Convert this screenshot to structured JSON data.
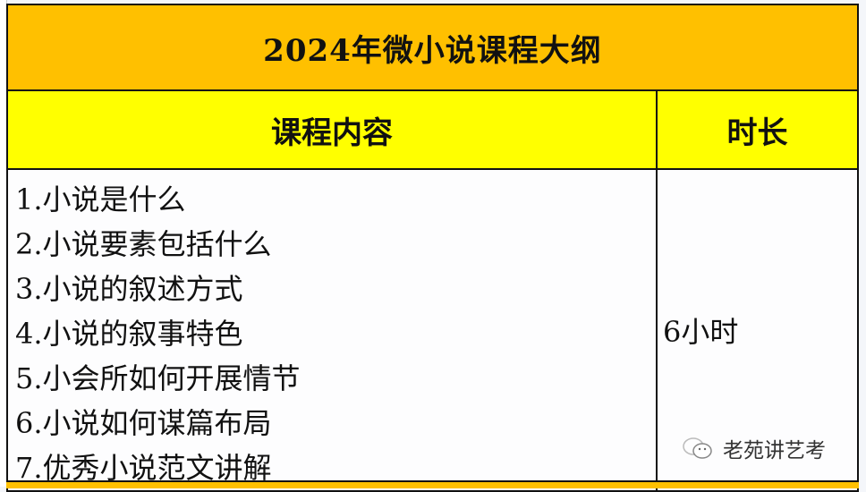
{
  "table": {
    "title": "2024年微小说课程大纲",
    "headers": [
      "课程内容",
      "时长"
    ],
    "items": [
      "1.小说是什么",
      "2.小说要素包括什么",
      "3.小说的叙述方式",
      "4.小说的叙事特色",
      "5.小会所如何开展情节",
      "6.小说如何谋篇布局",
      "7.优秀小说范文讲解"
    ],
    "duration": "6小时"
  },
  "watermark": {
    "text": "老苑讲艺考",
    "icon": "wechat-icon"
  },
  "colors": {
    "title_bg": "#ffc000",
    "header_bg": "#ffff00"
  }
}
